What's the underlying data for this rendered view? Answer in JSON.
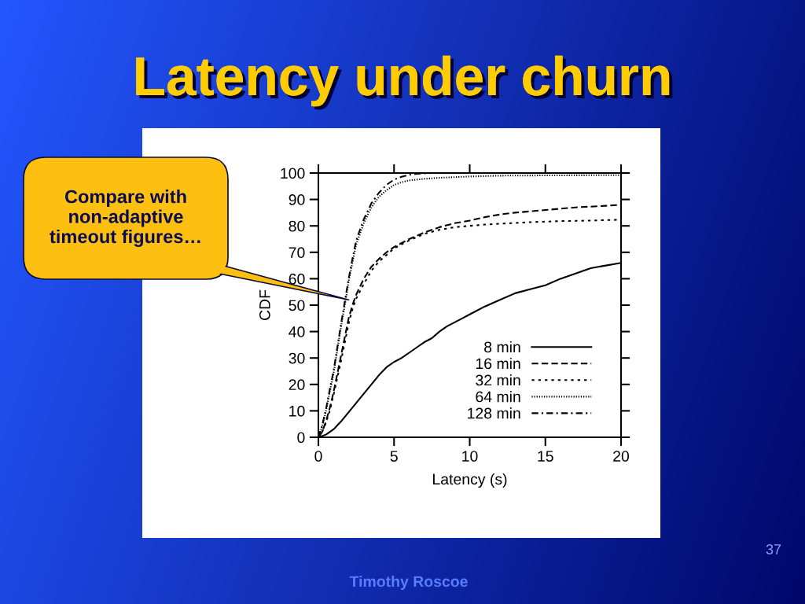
{
  "chart_data": {
    "type": "line",
    "title": "Latency under churn",
    "xlabel": "Latency (s)",
    "ylabel": "CDF",
    "xlim": [
      0,
      20
    ],
    "ylim": [
      0,
      100
    ],
    "xticks": [
      0,
      5,
      10,
      15,
      20
    ],
    "yticks": [
      0,
      10,
      20,
      30,
      40,
      50,
      60,
      70,
      80,
      90,
      100
    ],
    "legend": "bottom right",
    "series": [
      {
        "name": "8 min",
        "color": "#000000",
        "line_style": "solid",
        "x": [
          0,
          0.5,
          1,
          1.5,
          2,
          2.5,
          3,
          3.5,
          4,
          4.5,
          5,
          5.5,
          6,
          6.5,
          7,
          7.5,
          8,
          8.5,
          9,
          9.5,
          10,
          11,
          12,
          13,
          14,
          15,
          16,
          17,
          18,
          19,
          20
        ],
        "values": [
          0,
          1,
          3,
          6,
          9.5,
          13,
          16.5,
          20,
          23.5,
          26.5,
          28.5,
          30,
          32,
          34,
          36,
          37.5,
          40,
          42,
          43.5,
          45,
          46.5,
          49.5,
          52,
          54.5,
          56,
          57.5,
          60,
          62,
          64,
          65,
          66
        ]
      },
      {
        "name": "16 min",
        "color": "#000000",
        "line_style": "dashed",
        "x": [
          0,
          0.25,
          0.5,
          0.75,
          1,
          1.25,
          1.5,
          1.75,
          2,
          2.25,
          2.5,
          3,
          3.5,
          4,
          4.5,
          5,
          6,
          7,
          8,
          9,
          10,
          11,
          12,
          13,
          14,
          15,
          16,
          17,
          18,
          19,
          20
        ],
        "values": [
          0,
          2,
          6,
          11,
          17,
          24,
          31,
          38,
          45,
          50,
          54,
          60,
          64.5,
          67.5,
          70,
          72,
          75,
          77.5,
          79.5,
          81,
          82,
          83.3,
          84.3,
          85,
          85.5,
          86,
          86.5,
          87,
          87.3,
          87.6,
          88
        ]
      },
      {
        "name": "32 min",
        "color": "#000000",
        "line_style": "short dashed",
        "x": [
          0,
          0.25,
          0.5,
          0.75,
          1,
          1.25,
          1.5,
          1.75,
          2,
          2.25,
          2.5,
          3,
          3.5,
          4,
          4.5,
          5,
          6,
          7,
          8,
          9,
          10,
          11,
          12,
          13,
          14,
          15,
          16,
          17,
          18,
          19,
          20
        ],
        "values": [
          0,
          2,
          5.5,
          10,
          16,
          22.5,
          29,
          36,
          43,
          48.5,
          52.5,
          58,
          63,
          66.5,
          69,
          71.5,
          74.5,
          77,
          78.5,
          79.5,
          80,
          80.5,
          80.8,
          81.1,
          81.4,
          81.6,
          81.8,
          81.9,
          82,
          82.2,
          82.3
        ]
      },
      {
        "name": "64 min",
        "color": "#000000",
        "line_style": "dotted",
        "x": [
          0,
          0.25,
          0.5,
          0.75,
          1,
          1.25,
          1.5,
          1.75,
          2,
          2.25,
          2.5,
          3,
          3.5,
          4,
          4.5,
          5,
          5.5,
          6,
          7,
          8,
          10,
          12,
          15,
          20
        ],
        "values": [
          0,
          4,
          10,
          17,
          24,
          33,
          42,
          50,
          59,
          66,
          73,
          81,
          87,
          91,
          93.5,
          95.5,
          96.5,
          97.2,
          97.8,
          98.2,
          98.7,
          99,
          99.1,
          99.2
        ]
      },
      {
        "name": "128 min",
        "color": "#000000",
        "line_style": "dashdot",
        "x": [
          0,
          0.25,
          0.5,
          0.75,
          1,
          1.25,
          1.5,
          1.75,
          2,
          2.25,
          2.5,
          3,
          3.5,
          4,
          4.5,
          5,
          5.5,
          6,
          6.5,
          7.5,
          20
        ],
        "values": [
          0,
          4.5,
          10.5,
          18,
          25,
          34,
          43,
          51.5,
          60,
          67.5,
          74.5,
          82.5,
          88.5,
          92.5,
          95.5,
          97.5,
          98.6,
          99.3,
          99.7,
          100,
          100
        ]
      }
    ],
    "annotations": [
      {
        "text": "Compare with non-adaptive timeout figures…",
        "x": 2,
        "y": 52
      },
      "Timothy Roscoe",
      "37"
    ]
  }
}
